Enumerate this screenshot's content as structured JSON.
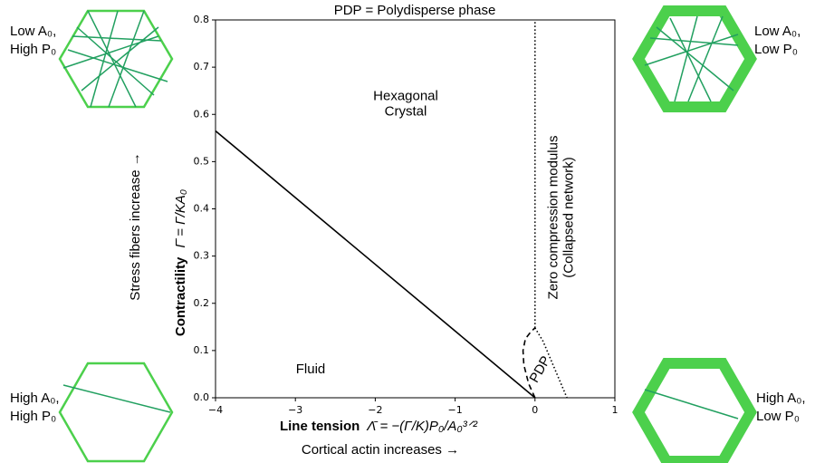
{
  "chart_data": {
    "type": "line",
    "title": "PDP = Polydisperse phase",
    "x_label": "Line tension",
    "x_label_formula": "Λ̄ = −(Γ/K)P₀/A₀³ᐟ²",
    "y_label": "Contractility",
    "y_label_formula": "Γ̄ = Γ/KA₀",
    "xlim": [
      -4,
      1
    ],
    "ylim": [
      0,
      0.8
    ],
    "xticks": [
      {
        "value": -4,
        "label": "−4"
      },
      {
        "value": -3,
        "label": "−3"
      },
      {
        "value": -2,
        "label": "−2"
      },
      {
        "value": -1,
        "label": "−1"
      },
      0,
      1
    ],
    "yticks": [
      {
        "value": 0,
        "label": "0.0"
      },
      0.1,
      0.2,
      0.3,
      0.4,
      0.5,
      0.6,
      0.7,
      0.8
    ],
    "series": [
      {
        "color": "#000000",
        "dash": "solid",
        "x": [
          -4,
          0
        ],
        "values": [
          0.565,
          0
        ]
      },
      {
        "color": "#000000",
        "dash": "dashed",
        "x": [
          0,
          -0.08,
          -0.14,
          -0.15,
          -0.12,
          -0.05,
          0
        ],
        "values": [
          0,
          0.03,
          0.07,
          0.1,
          0.125,
          0.14,
          0.148
        ]
      },
      {
        "color": "#000000",
        "dash": "dotted",
        "x": [
          0,
          0.1,
          0.2,
          0.3,
          0.4
        ],
        "values": [
          0.148,
          0.12,
          0.08,
          0.04,
          0
        ]
      },
      {
        "color": "#000000",
        "dash": "dotted",
        "x": [
          0,
          0
        ],
        "values": [
          0.148,
          0.8
        ]
      }
    ],
    "annotations": [
      {
        "lines": [
          "Hexagonal",
          "Crystal"
        ],
        "color": "#2a74b0"
      },
      {
        "lines": [
          "Fluid"
        ],
        "color": "#e8861d"
      },
      {
        "lines": [
          "PDP"
        ],
        "color": "#2aa02a"
      },
      {
        "lines": [
          "Zero compression modulus",
          "(Collapsed network)"
        ],
        "color": "#999999"
      }
    ],
    "side_labels": {
      "vertical": "Stress fibers increase →",
      "horizontal": "Cortical actin increases →",
      "color": "#2eb34a"
    },
    "corner_labels": {
      "top_left": [
        "Low A₀,",
        "High P₀"
      ],
      "top_right": [
        "Low A₀,",
        "Low P₀"
      ],
      "bottom_left": [
        "High A₀,",
        "High P₀"
      ],
      "bottom_right": [
        "High A₀,",
        "Low P₀"
      ]
    }
  }
}
